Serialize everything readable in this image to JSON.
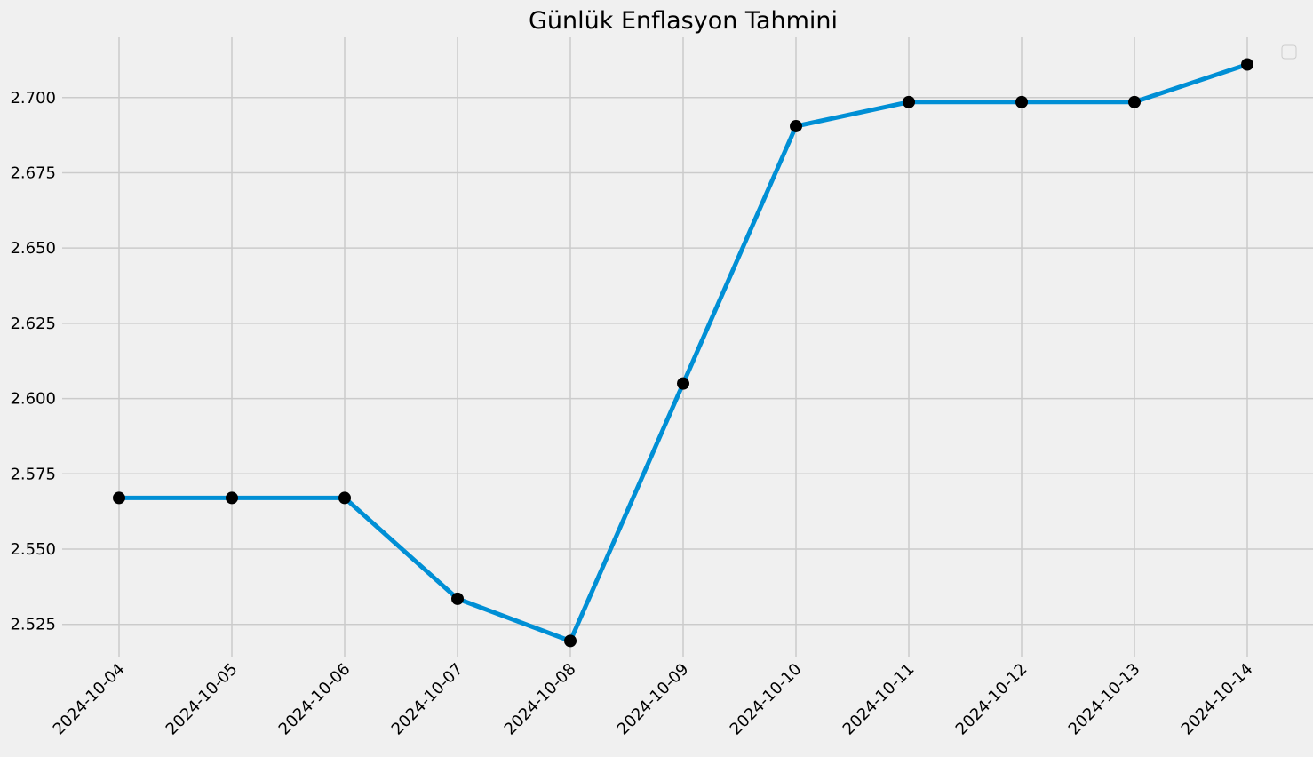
{
  "chart_data": {
    "type": "line",
    "title": "Günlük Enflasyon Tahmini",
    "xlabel": "",
    "ylabel": "",
    "x": [
      "2024-10-04",
      "2024-10-05",
      "2024-10-06",
      "2024-10-07",
      "2024-10-08",
      "2024-10-09",
      "2024-10-10",
      "2024-10-11",
      "2024-10-12",
      "2024-10-13",
      "2024-10-14"
    ],
    "series": [
      {
        "values": [
          2.567,
          2.567,
          2.567,
          2.5335,
          2.5195,
          2.605,
          2.6905,
          2.6985,
          2.6985,
          2.6985,
          2.711
        ],
        "color": "#008fd5",
        "marker_color": "#000000"
      }
    ],
    "ylim": [
      2.514,
      2.72
    ],
    "yticks": [
      "2.525",
      "2.550",
      "2.575",
      "2.600",
      "2.625",
      "2.650",
      "2.675",
      "2.700"
    ],
    "grid": true,
    "legend": "top-right",
    "background": "#f0f0f0",
    "grid_color": "#cbcbcb"
  }
}
